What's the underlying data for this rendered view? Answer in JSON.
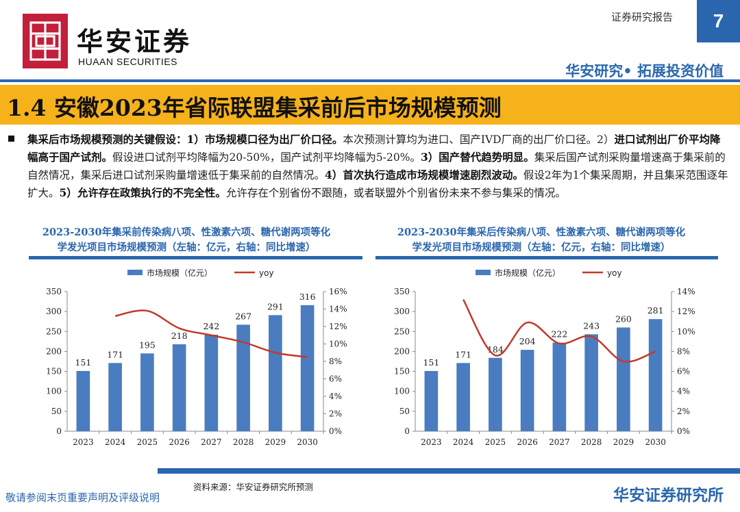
{
  "header": {
    "logo_cn": "华安证券",
    "logo_en": "HUAAN SECURITIES",
    "report_type": "证券研究报告",
    "page_number": "7",
    "slogan": "华安研究• 拓展投资价值"
  },
  "title": "1.4 安徽2023年省际联盟集采前后市场规模预测",
  "paragraph": {
    "lead": "集采后市场规模预测的关键假设：",
    "p1_num": "1）",
    "p1_bold": "市场规模口径为出厂价口径。",
    "p1_text": "本次预测计算均为进口、国产IVD厂商的出厂价口径。",
    "p2_num": "2）",
    "p2_bold": "进口试剂出厂价平均降幅高于国产试剂。",
    "p2_text": "假设进口试剂平均降幅为20-50%，国产试剂平均降幅为5-20%。",
    "p3_num": "3）",
    "p3_bold": "国产替代趋势明显。",
    "p3_text": "集采后国产试剂采购量增速高于集采前的自然情况，集采后进口试剂采购量增速低于集采前的自然情况。",
    "p4_num": "4）",
    "p4_bold": "首次执行造成市场规模增速剧烈波动。",
    "p4_text": "假设2年为1个集采周期，并且集采范围逐年扩大。",
    "p5_num": "5）",
    "p5_bold": "允许存在政策执行的不完全性。",
    "p5_text": "允许存在个别省份不跟随，或者联盟外个别省份未来不参与集采的情况。"
  },
  "chart_titles": [
    {
      "line1": "2023-2030年集采前传染病八项、性激素六项、糖代谢两项等化",
      "line2": "学发光项目市场规模预测（左轴：亿元，右轴：同比增速）"
    },
    {
      "line1": "2023-2030年集采后传染病八项、性激素六项、糖代谢两项等化",
      "line2": "学发光项目市场规模预测（左轴：亿元，右轴：同比增速）"
    }
  ],
  "chart_data": [
    {
      "type": "bar",
      "categories": [
        "2023",
        "2024",
        "2025",
        "2026",
        "2027",
        "2028",
        "2029",
        "2030"
      ],
      "series": [
        {
          "name": "市场规模（亿元）",
          "type": "bar",
          "axis": "left",
          "values": [
            151,
            171,
            195,
            218,
            242,
            267,
            291,
            316
          ],
          "color": "#4a7cc0"
        },
        {
          "name": "yoy",
          "type": "line",
          "axis": "right",
          "values": [
            null,
            13.2,
            13.8,
            11.8,
            11.0,
            10.2,
            9.0,
            8.5
          ],
          "color": "#c0392b"
        }
      ],
      "ylim_left": [
        0,
        350
      ],
      "yticks_left": [
        0,
        50,
        100,
        150,
        200,
        250,
        300,
        350
      ],
      "ylim_right": [
        0,
        16
      ],
      "yticks_right": [
        "0%",
        "2%",
        "4%",
        "6%",
        "8%",
        "10%",
        "12%",
        "14%",
        "16%"
      ],
      "legend": "top"
    },
    {
      "type": "bar",
      "categories": [
        "2023",
        "2024",
        "2025",
        "2026",
        "2027",
        "2028",
        "2029",
        "2030"
      ],
      "series": [
        {
          "name": "市场规模（亿元）",
          "type": "bar",
          "axis": "left",
          "values": [
            151,
            171,
            184,
            204,
            222,
            243,
            260,
            281
          ],
          "color": "#4a7cc0"
        },
        {
          "name": "yoy",
          "type": "line",
          "axis": "right",
          "values": [
            null,
            13.2,
            7.6,
            10.9,
            8.8,
            9.5,
            7.0,
            8.0
          ],
          "color": "#c0392b"
        }
      ],
      "ylim_left": [
        0,
        350
      ],
      "yticks_left": [
        0,
        50,
        100,
        150,
        200,
        250,
        300,
        350
      ],
      "ylim_right": [
        0,
        14
      ],
      "yticks_right": [
        "0%",
        "2%",
        "4%",
        "6%",
        "8%",
        "10%",
        "12%",
        "14%"
      ],
      "legend": "top"
    }
  ],
  "footer": {
    "source": "资料来源：华安证券研究所预测",
    "disclaimer": "敬请参阅末页重要声明及评级说明",
    "brand": "华安证券研究所"
  },
  "colors": {
    "brand_blue": "#2a66ae",
    "title_bar": "#f6b21b",
    "logo_red": "#c21f3a"
  }
}
